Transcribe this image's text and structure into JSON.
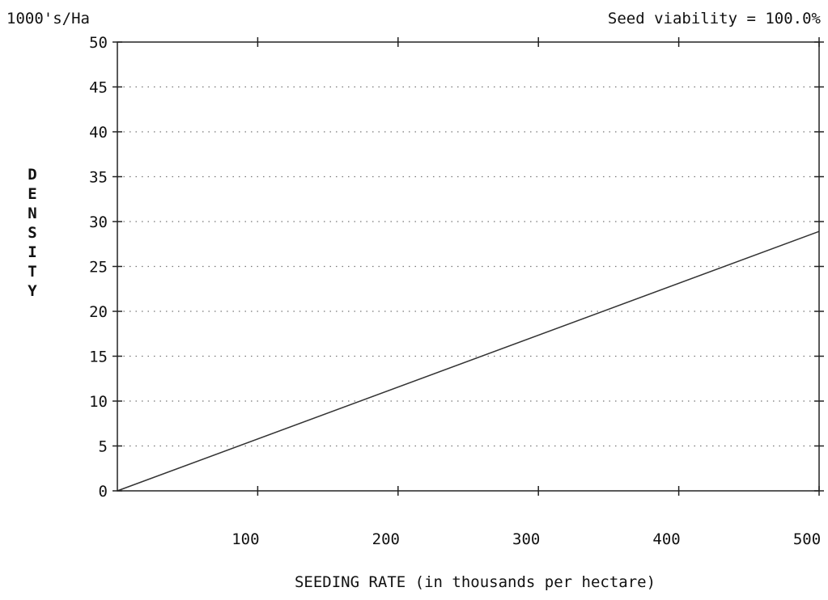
{
  "chart_data": {
    "type": "line",
    "units_label": "1000's/Ha",
    "annotation": "Seed viability = 100.0%",
    "xlabel": "SEEDING RATE (in thousands per hectare)",
    "ylabel": "DENSITY",
    "xlim": [
      0,
      500
    ],
    "ylim": [
      0,
      50
    ],
    "x_ticks": [
      100,
      200,
      300,
      400,
      500
    ],
    "y_ticks": [
      0,
      5,
      10,
      15,
      20,
      25,
      30,
      35,
      40,
      45,
      50
    ],
    "grid": "horizontal-dotted",
    "series": [
      {
        "x": [
          0,
          500
        ],
        "y": [
          0,
          28.9
        ]
      }
    ],
    "colors": {
      "line": "#333333",
      "grid": "#777777",
      "axis": "#222222"
    }
  }
}
